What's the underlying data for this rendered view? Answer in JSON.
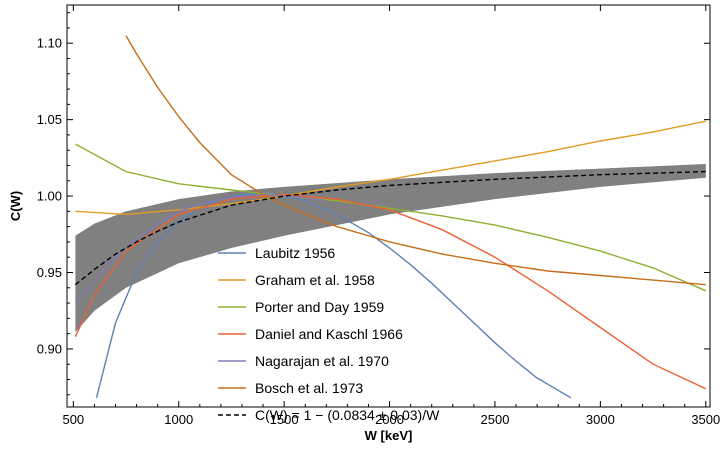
{
  "chart_data": {
    "type": "line",
    "xlabel": "W [keV]",
    "ylabel": "C(W)",
    "xlim": [
      470,
      3520
    ],
    "ylim": [
      0.862,
      1.125
    ],
    "xticks": [
      500,
      1000,
      1500,
      2000,
      2500,
      3000,
      3500
    ],
    "xtick_labels": [
      "500",
      "1000",
      "1500",
      "2000",
      "2500",
      "3000",
      "3500"
    ],
    "yticks": [
      0.9,
      0.95,
      1.0,
      1.05,
      1.1
    ],
    "ytick_labels": [
      "0.90",
      "0.95",
      "1.00",
      "1.05",
      "1.10"
    ],
    "legend_position": "bottom-center",
    "band": {
      "x": [
        510,
        600,
        750,
        1000,
        1250,
        1500,
        2000,
        2500,
        3000,
        3500
      ],
      "upper": [
        0.974,
        0.982,
        0.99,
        0.998,
        1.003,
        1.006,
        1.011,
        1.015,
        1.018,
        1.021
      ],
      "lower": [
        0.911,
        0.925,
        0.94,
        0.956,
        0.966,
        0.974,
        0.988,
        0.998,
        1.006,
        1.012
      ],
      "color": "#808080"
    },
    "series": [
      {
        "name": "Laubitz 1956",
        "color": "#5e81b5",
        "dash": "",
        "x": [
          610,
          700,
          800,
          900,
          1000,
          1100,
          1200,
          1300,
          1400,
          1500,
          1600,
          1700,
          1800,
          1900,
          2000,
          2100,
          2200,
          2300,
          2400,
          2500,
          2600,
          2700,
          2860
        ],
        "values": [
          0.868,
          0.917,
          0.95,
          0.97,
          0.983,
          0.992,
          0.998,
          1.001,
          1.002,
          1.0,
          0.997,
          0.991,
          0.984,
          0.976,
          0.966,
          0.955,
          0.943,
          0.93,
          0.917,
          0.904,
          0.892,
          0.881,
          0.868
        ]
      },
      {
        "name": "Graham et al. 1958",
        "color": "#e19c24",
        "dash": "",
        "x": [
          510,
          750,
          1000,
          1250,
          1500,
          1750,
          2000,
          2250,
          2500,
          2750,
          3000,
          3250,
          3500
        ],
        "values": [
          0.99,
          0.988,
          0.991,
          0.995,
          1.0,
          1.006,
          1.011,
          1.017,
          1.023,
          1.029,
          1.036,
          1.042,
          1.049
        ]
      },
      {
        "name": "Porter and Day 1959",
        "color": "#8fb032",
        "dash": "",
        "x": [
          510,
          750,
          1000,
          1250,
          1500,
          1750,
          2000,
          2250,
          2500,
          2750,
          3000,
          3250,
          3500
        ],
        "values": [
          1.034,
          1.016,
          1.008,
          1.004,
          1.0,
          0.997,
          0.992,
          0.987,
          0.981,
          0.973,
          0.964,
          0.953,
          0.938
        ]
      },
      {
        "name": "Daniel and Kaschl 1966",
        "color": "#eb6235",
        "dash": "",
        "x": [
          510,
          600,
          750,
          1000,
          1250,
          1500,
          1750,
          2000,
          2250,
          2500,
          2750,
          3000,
          3250,
          3500
        ],
        "values": [
          0.908,
          0.935,
          0.964,
          0.988,
          0.998,
          1.001,
          0.998,
          0.991,
          0.978,
          0.96,
          0.938,
          0.914,
          0.89,
          0.874
        ]
      },
      {
        "name": "Nagarajan et al. 1970",
        "color": "#8778b3",
        "dash": "",
        "x": [
          510,
          600,
          700,
          800,
          900,
          1000,
          1100,
          1200,
          1300,
          1400,
          1500,
          1600,
          1700
        ],
        "values": [
          0.93,
          0.945,
          0.96,
          0.972,
          0.982,
          0.99,
          0.995,
          0.998,
          1.0,
          1.001,
          1.0,
          0.999,
          0.997
        ]
      },
      {
        "name": "Bosch et al. 1973",
        "color": "#c56e1a",
        "dash": "",
        "x": [
          750,
          800,
          900,
          1000,
          1100,
          1250,
          1400,
          1500,
          1750,
          2000,
          2250,
          2500,
          2750,
          3000,
          3250,
          3500
        ],
        "values": [
          1.105,
          1.093,
          1.071,
          1.052,
          1.035,
          1.014,
          1.001,
          0.994,
          0.98,
          0.97,
          0.962,
          0.956,
          0.951,
          0.948,
          0.945,
          0.942
        ]
      },
      {
        "name": "C(W) = 1 − (0.0834 ± 0.03)/W",
        "color": "#000000",
        "dash": "5,3",
        "x": [
          510,
          600,
          700,
          800,
          900,
          1000,
          1250,
          1500,
          1750,
          2000,
          2500,
          3000,
          3500
        ],
        "values": [
          0.942,
          0.952,
          0.962,
          0.97,
          0.977,
          0.983,
          0.994,
          1.0,
          1.004,
          1.007,
          1.011,
          1.014,
          1.016
        ]
      }
    ]
  }
}
